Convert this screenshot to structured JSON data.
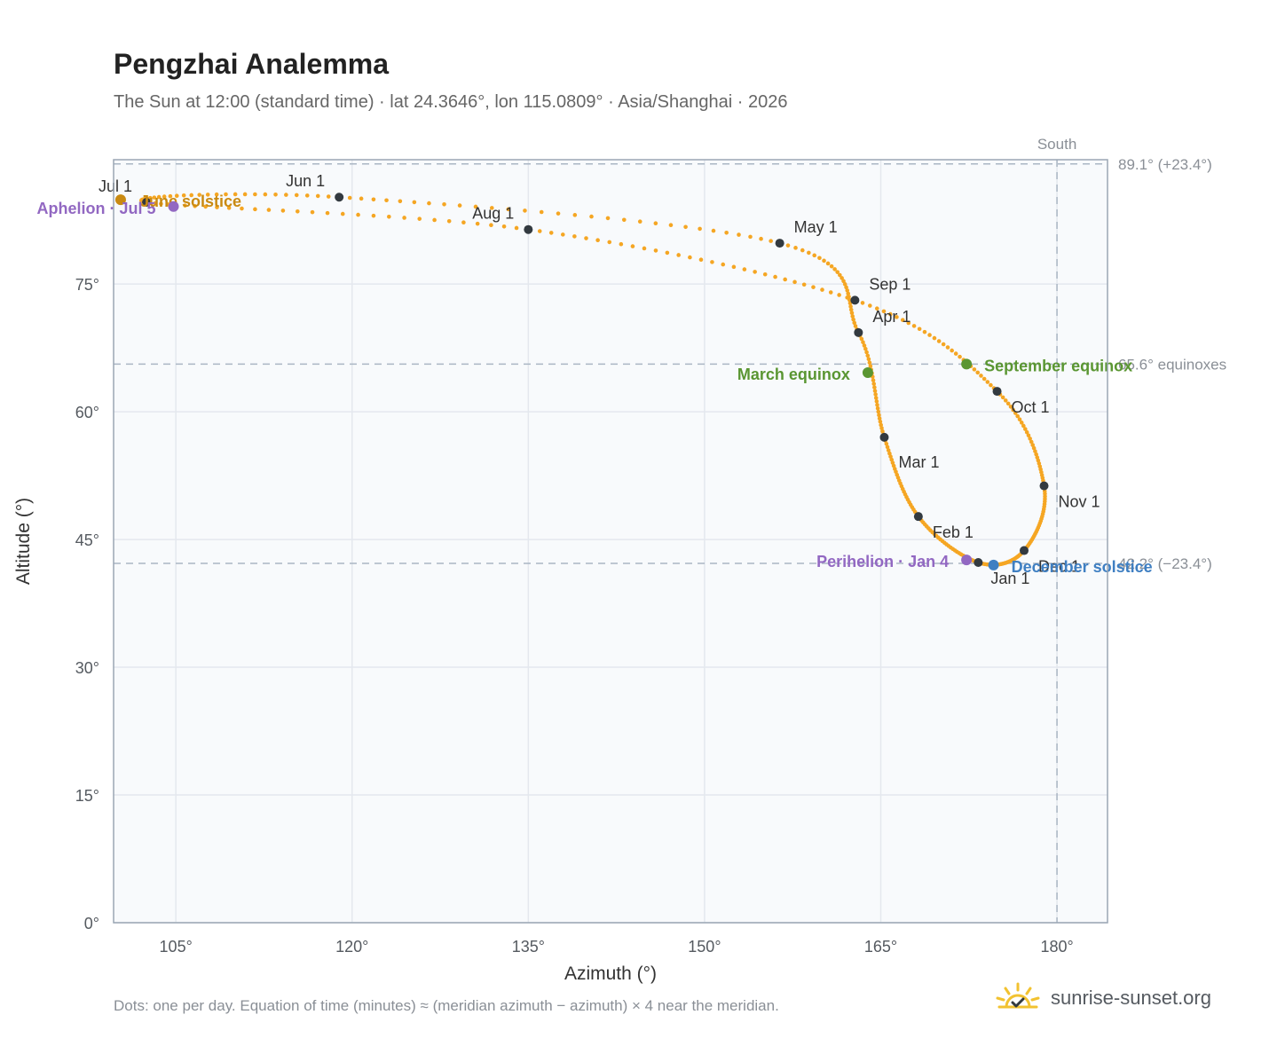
{
  "header": {
    "title": "Pengzhai Analemma",
    "subtitle": "The Sun at 12:00 (standard time) · lat 24.3646°, lon 115.0809° · Asia/Shanghai · 2026"
  },
  "footnote": "Dots: one per day. Equation of time (minutes) ≈ (meridian azimuth − azimuth) × 4 near the meridian.",
  "brand": {
    "name": "sunrise-sunset.org",
    "icon": "sun-logo-icon",
    "color": "#f2c230"
  },
  "colors": {
    "path": "#f5a623",
    "month_dot": "#333a40",
    "equinox": "#5a9632",
    "december_solstice": "#3f7fc2",
    "june_solstice": "#c98a12",
    "apsis": "#9268c2",
    "grid": "#e4e8ee",
    "plot_bg": "#f8fafc",
    "ref_line": "#aab6c4",
    "border": "#9aa6b4"
  },
  "chart_data": {
    "type": "scatter",
    "xlabel": "Azimuth (°)",
    "ylabel": "Altitude (°)",
    "xlim": [
      99.7,
      184.3
    ],
    "ylim": [
      0,
      89.6
    ],
    "xticks": [
      105,
      120,
      135,
      150,
      165,
      180
    ],
    "yticks": [
      0,
      15,
      30,
      45,
      60,
      75
    ],
    "xtick_labels": [
      "105°",
      "120°",
      "135°",
      "150°",
      "165°",
      "180°"
    ],
    "ytick_labels": [
      "0°",
      "15°",
      "30°",
      "45°",
      "60°",
      "75°"
    ],
    "grid": true,
    "month_markers": [
      {
        "label": "Jan 1",
        "az": 173.3,
        "alt": 42.3
      },
      {
        "label": "Feb 1",
        "az": 168.2,
        "alt": 47.7
      },
      {
        "label": "Mar 1",
        "az": 165.3,
        "alt": 57.0
      },
      {
        "label": "Apr 1",
        "az": 163.1,
        "alt": 69.3
      },
      {
        "label": "May 1",
        "az": 156.4,
        "alt": 79.8
      },
      {
        "label": "Jun 1",
        "az": 118.9,
        "alt": 85.2
      },
      {
        "label": "Jul 1",
        "az": 102.5,
        "alt": 84.6
      },
      {
        "label": "Aug 1",
        "az": 135.0,
        "alt": 81.4
      },
      {
        "label": "Sep 1",
        "az": 162.8,
        "alt": 73.1
      },
      {
        "label": "Oct 1",
        "az": 174.9,
        "alt": 62.4
      },
      {
        "label": "Nov 1",
        "az": 178.9,
        "alt": 51.3
      },
      {
        "label": "Dec 1",
        "az": 177.2,
        "alt": 43.7
      }
    ],
    "events": [
      {
        "label": "March equinox",
        "az": 163.9,
        "alt": 64.6
      },
      {
        "label": "September equinox",
        "az": 172.3,
        "alt": 65.6
      },
      {
        "label": "December solstice",
        "az": 174.6,
        "alt": 42.0
      },
      {
        "label": "June solstice",
        "az": 100.3,
        "alt": 84.9
      },
      {
        "label": "Perihelion · Jan 4",
        "az": 172.3,
        "alt": 42.6
      },
      {
        "label": "Aphelion · Jul 5",
        "az": 104.8,
        "alt": 84.1
      }
    ],
    "reference_lines": {
      "south_label": "South",
      "south_az": 180,
      "max_alt": 89.1,
      "max_alt_label": "89.1° (+23.4°)",
      "equinox_alt": 65.6,
      "equinox_alt_label": "65.6° equinoxes",
      "min_alt": 42.2,
      "min_alt_label": "42.2° (−23.4°)"
    }
  }
}
